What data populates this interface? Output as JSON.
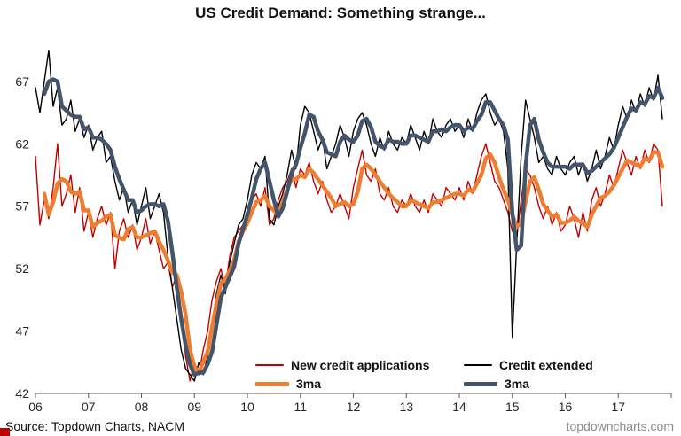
{
  "title": "US Credit Demand: Something strange...",
  "footer": {
    "source": "Source: Topdown Charts, NACM",
    "watermark": "topdowncharts.com"
  },
  "legend": {
    "row1": [
      {
        "label": "New credit applications",
        "color": "#C00000"
      },
      {
        "label": "Credit extended",
        "color": "#000000"
      }
    ],
    "row2": [
      {
        "label": "3ma",
        "color": "#ED7D31"
      },
      {
        "label": "3ma",
        "color": "#44546A"
      }
    ]
  },
  "chart_data": {
    "type": "line",
    "title": "US Credit Demand: Something strange...",
    "x_start_year": 2006,
    "frequency": "monthly",
    "xlim": [
      2006,
      2018
    ],
    "ylim": [
      42,
      70.4
    ],
    "yticks": [
      42,
      47,
      52,
      57,
      62,
      67
    ],
    "xtick_labels": [
      "06",
      "07",
      "08",
      "09",
      "10",
      "11",
      "12",
      "13",
      "14",
      "15",
      "16",
      "17"
    ],
    "grid": false,
    "legend_position": "inside-bottom-center",
    "series": [
      {
        "name": "New credit applications",
        "color": "#C00000",
        "line_width": 1.4,
        "style": "thin",
        "values": [
          61,
          55.5,
          57.5,
          56,
          58.5,
          62,
          57,
          58,
          59.5,
          56.5,
          58.5,
          55,
          56.5,
          54.5,
          56,
          57,
          55.5,
          56.5,
          52,
          55,
          56,
          54.5,
          55.5,
          53.5,
          54.5,
          56,
          54,
          55,
          53.5,
          52,
          52.5,
          50.5,
          51.5,
          48.5,
          45,
          43,
          44.5,
          43.5,
          45.5,
          47,
          49.5,
          51,
          52,
          50.5,
          53,
          54.5,
          55,
          55.5,
          56.5,
          57.5,
          58,
          57,
          58.5,
          55.5,
          56,
          57.5,
          58.5,
          59,
          60,
          58.5,
          60,
          59.5,
          60.5,
          59,
          58,
          59,
          57.5,
          56.5,
          57,
          58,
          57,
          56,
          58.5,
          60,
          61.5,
          59.5,
          59,
          60,
          58,
          57.5,
          58.5,
          57,
          56.5,
          57.5,
          57,
          58,
          57,
          56.5,
          57.5,
          56.5,
          58,
          57.5,
          57,
          58.5,
          58,
          57.5,
          58.5,
          57.5,
          59,
          58,
          59.5,
          61,
          62,
          60.5,
          59,
          58.5,
          57.5,
          56.5,
          55,
          54.5,
          57.5,
          60,
          59.5,
          58.5,
          57,
          56,
          57,
          55.5,
          56.5,
          55,
          55.5,
          57,
          56,
          54.5,
          56.5,
          55,
          57.5,
          58.5,
          57,
          58,
          59.5,
          58.5,
          60,
          61.5,
          60.5,
          59.5,
          61,
          60,
          61.5,
          60.5,
          62,
          61.5,
          57
        ]
      },
      {
        "name": "Credit extended",
        "color": "#000000",
        "line_width": 1.4,
        "style": "thin",
        "values": [
          66.5,
          64.5,
          67,
          69.5,
          65,
          66.5,
          63.5,
          64,
          65.5,
          63,
          64,
          62.5,
          63.5,
          61.5,
          62.5,
          63,
          60.5,
          61,
          59,
          57.5,
          58.5,
          56.5,
          57.5,
          55.5,
          57,
          58.5,
          56,
          57,
          58,
          56.5,
          53,
          50.5,
          48,
          45.5,
          44,
          43.5,
          43,
          44.5,
          43.5,
          45,
          47.5,
          50,
          51.5,
          50,
          52.5,
          54,
          55.5,
          56,
          57.5,
          59.5,
          60.5,
          60,
          61,
          56,
          55.5,
          57,
          58,
          59.5,
          61.5,
          60,
          63.5,
          65,
          64.5,
          63,
          61.5,
          62.5,
          60,
          61,
          62,
          63.5,
          62.5,
          61,
          63,
          64,
          64.5,
          63.5,
          62,
          61,
          62.5,
          61.5,
          63,
          62,
          61.5,
          62.5,
          62,
          63.5,
          62.5,
          61.5,
          63,
          62,
          64,
          63,
          62.5,
          63.5,
          64,
          63,
          63.5,
          62.5,
          64,
          63,
          64.5,
          65.5,
          66,
          64.5,
          63.5,
          64,
          63,
          60,
          46.5,
          54,
          61,
          65.5,
          64,
          62.5,
          60.5,
          61,
          60,
          59.5,
          61,
          60,
          59.5,
          60.5,
          61,
          59.5,
          60.5,
          59,
          60,
          61.5,
          60,
          61,
          62.5,
          61.5,
          63.5,
          65,
          64,
          65.5,
          64.5,
          66,
          65,
          66.5,
          65.5,
          67.5,
          64
        ]
      },
      {
        "name": "3ma",
        "full_name": "3-month moving average of New credit applications",
        "color": "#ED7D31",
        "line_width": 4.5,
        "style": "thick",
        "moving_average_of": 0
      },
      {
        "name": "3ma",
        "full_name": "3-month moving average of Credit extended",
        "color": "#44546A",
        "line_width": 4.5,
        "style": "thick",
        "moving_average_of": 1
      }
    ]
  }
}
